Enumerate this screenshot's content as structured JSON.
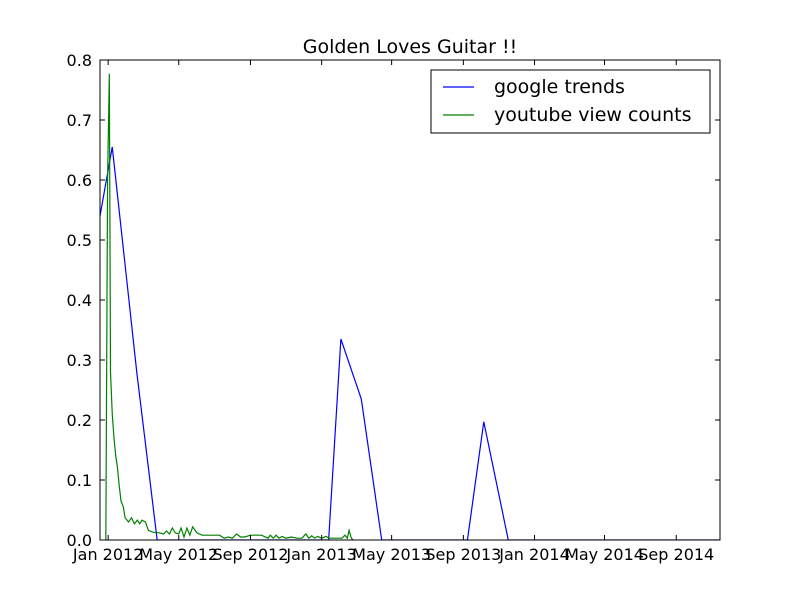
{
  "chart_data": {
    "type": "line",
    "title": "Golden Loves Guitar !!",
    "xlabel": "",
    "ylabel": "",
    "x_axis": {
      "kind": "date",
      "range": [
        "2011-12-18",
        "2014-11-15"
      ],
      "ticks": [
        {
          "date": "2012-01-01",
          "label": "Jan 2012"
        },
        {
          "date": "2012-05-01",
          "label": "May 2012"
        },
        {
          "date": "2012-09-01",
          "label": "Sep 2012"
        },
        {
          "date": "2013-01-01",
          "label": "Jan 2013"
        },
        {
          "date": "2013-05-01",
          "label": "May 2013"
        },
        {
          "date": "2013-09-01",
          "label": "Sep 2013"
        },
        {
          "date": "2014-01-01",
          "label": "Jan 2014"
        },
        {
          "date": "2014-05-01",
          "label": "May 2014"
        },
        {
          "date": "2014-09-01",
          "label": "Sep 2014"
        }
      ]
    },
    "y_axis": {
      "range": [
        0,
        0.8
      ],
      "ticks": [
        {
          "value": 0.0,
          "label": "0.0"
        },
        {
          "value": 0.1,
          "label": "0.1"
        },
        {
          "value": 0.2,
          "label": "0.2"
        },
        {
          "value": 0.3,
          "label": "0.3"
        },
        {
          "value": 0.4,
          "label": "0.4"
        },
        {
          "value": 0.5,
          "label": "0.5"
        },
        {
          "value": 0.6,
          "label": "0.6"
        },
        {
          "value": 0.7,
          "label": "0.7"
        },
        {
          "value": 0.8,
          "label": "0.8"
        }
      ]
    },
    "grid": false,
    "legend_position": "top-right",
    "series": [
      {
        "name": "google trends",
        "color": "#0000ff",
        "points": [
          [
            "2011-12-18",
            0.54
          ],
          [
            "2012-01-08",
            0.655
          ],
          [
            "2012-02-19",
            0.28
          ],
          [
            "2012-03-25",
            0.0
          ],
          [
            "2013-01-13",
            0.0
          ],
          [
            "2013-02-03",
            0.335
          ],
          [
            "2013-03-10",
            0.235
          ],
          [
            "2013-04-14",
            0.0
          ],
          [
            "2013-09-08",
            0.0
          ],
          [
            "2013-10-06",
            0.197
          ],
          [
            "2013-11-17",
            0.0
          ],
          [
            "2014-11-15",
            0.0
          ]
        ]
      },
      {
        "name": "youtube view counts",
        "color": "#008000",
        "points": [
          [
            "2011-12-28",
            0.0
          ],
          [
            "2011-12-31",
            0.6
          ],
          [
            "2012-01-03",
            0.777
          ],
          [
            "2012-01-05",
            0.28
          ],
          [
            "2012-01-08",
            0.21
          ],
          [
            "2012-01-11",
            0.17
          ],
          [
            "2012-01-14",
            0.14
          ],
          [
            "2012-01-17",
            0.12
          ],
          [
            "2012-01-20",
            0.09
          ],
          [
            "2012-01-23",
            0.065
          ],
          [
            "2012-01-27",
            0.055
          ],
          [
            "2012-01-30",
            0.037
          ],
          [
            "2012-02-05",
            0.03
          ],
          [
            "2012-02-10",
            0.037
          ],
          [
            "2012-02-15",
            0.027
          ],
          [
            "2012-02-20",
            0.033
          ],
          [
            "2012-02-24",
            0.027
          ],
          [
            "2012-02-28",
            0.033
          ],
          [
            "2012-03-05",
            0.03
          ],
          [
            "2012-03-10",
            0.016
          ],
          [
            "2012-03-18",
            0.013
          ],
          [
            "2012-03-28",
            0.012
          ],
          [
            "2012-04-05",
            0.01
          ],
          [
            "2012-04-10",
            0.015
          ],
          [
            "2012-04-15",
            0.01
          ],
          [
            "2012-04-20",
            0.02
          ],
          [
            "2012-04-25",
            0.012
          ],
          [
            "2012-05-01",
            0.01
          ],
          [
            "2012-05-05",
            0.02
          ],
          [
            "2012-05-10",
            0.005
          ],
          [
            "2012-05-15",
            0.02
          ],
          [
            "2012-05-20",
            0.008
          ],
          [
            "2012-05-25",
            0.022
          ],
          [
            "2012-06-01",
            0.012
          ],
          [
            "2012-06-10",
            0.008
          ],
          [
            "2012-06-20",
            0.008
          ],
          [
            "2012-07-01",
            0.008
          ],
          [
            "2012-07-10",
            0.008
          ],
          [
            "2012-07-18",
            0.003
          ],
          [
            "2012-07-25",
            0.005
          ],
          [
            "2012-08-01",
            0.003
          ],
          [
            "2012-08-08",
            0.01
          ],
          [
            "2012-08-15",
            0.005
          ],
          [
            "2012-08-22",
            0.005
          ],
          [
            "2012-09-01",
            0.008
          ],
          [
            "2012-09-10",
            0.008
          ],
          [
            "2012-09-20",
            0.008
          ],
          [
            "2012-10-01",
            0.003
          ],
          [
            "2012-10-05",
            0.008
          ],
          [
            "2012-10-10",
            0.003
          ],
          [
            "2012-10-15",
            0.008
          ],
          [
            "2012-10-20",
            0.003
          ],
          [
            "2012-10-25",
            0.006
          ],
          [
            "2012-11-01",
            0.003
          ],
          [
            "2012-11-10",
            0.005
          ],
          [
            "2012-11-20",
            0.003
          ],
          [
            "2012-11-28",
            0.003
          ],
          [
            "2012-12-05",
            0.01
          ],
          [
            "2012-12-10",
            0.003
          ],
          [
            "2012-12-15",
            0.007
          ],
          [
            "2012-12-20",
            0.003
          ],
          [
            "2012-12-25",
            0.006
          ],
          [
            "2013-01-01",
            0.003
          ],
          [
            "2013-01-08",
            0.006
          ],
          [
            "2013-01-15",
            0.003
          ],
          [
            "2013-01-22",
            0.003
          ],
          [
            "2013-01-29",
            0.003
          ],
          [
            "2013-02-05",
            0.003
          ],
          [
            "2013-02-10",
            0.008
          ],
          [
            "2013-02-14",
            0.003
          ],
          [
            "2013-02-17",
            0.016
          ],
          [
            "2013-02-21",
            0.003
          ],
          [
            "2013-02-24",
            0.0
          ]
        ]
      }
    ]
  }
}
